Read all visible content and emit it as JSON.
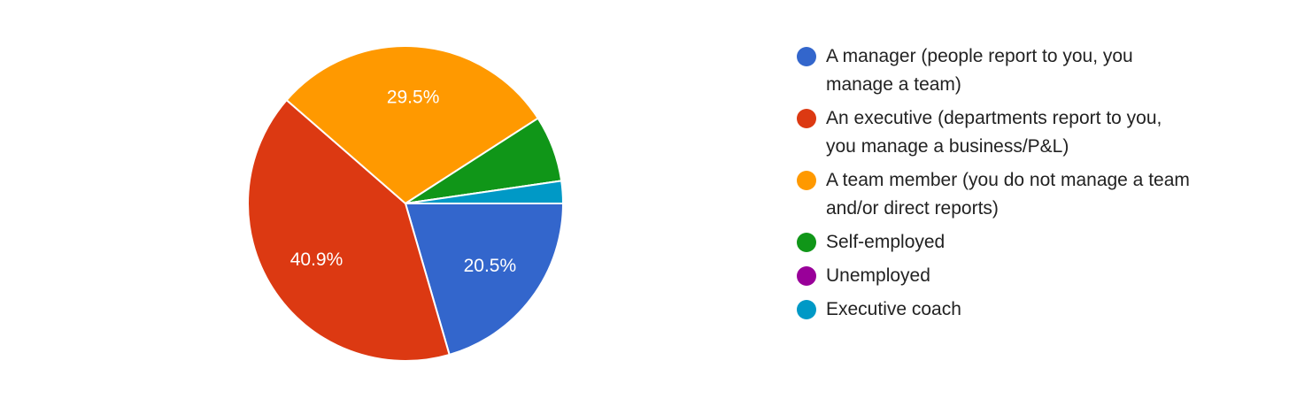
{
  "chart_data": {
    "type": "pie",
    "categories": [
      "A manager (people report to you, you manage a team)",
      "An executive (departments report to you, you manage a business/P&L)",
      "A team member (you do not manage a team and/or direct reports)",
      "Self-employed",
      "Unemployed",
      "Executive coach"
    ],
    "values": [
      20.5,
      40.9,
      29.5,
      6.8,
      0,
      2.3
    ],
    "value_labels": [
      "20.5%",
      "40.9%",
      "29.5%",
      null,
      null,
      null
    ],
    "colors": [
      "#3366cc",
      "#dc3912",
      "#ff9900",
      "#109618",
      "#990099",
      "#0099c6"
    ]
  }
}
